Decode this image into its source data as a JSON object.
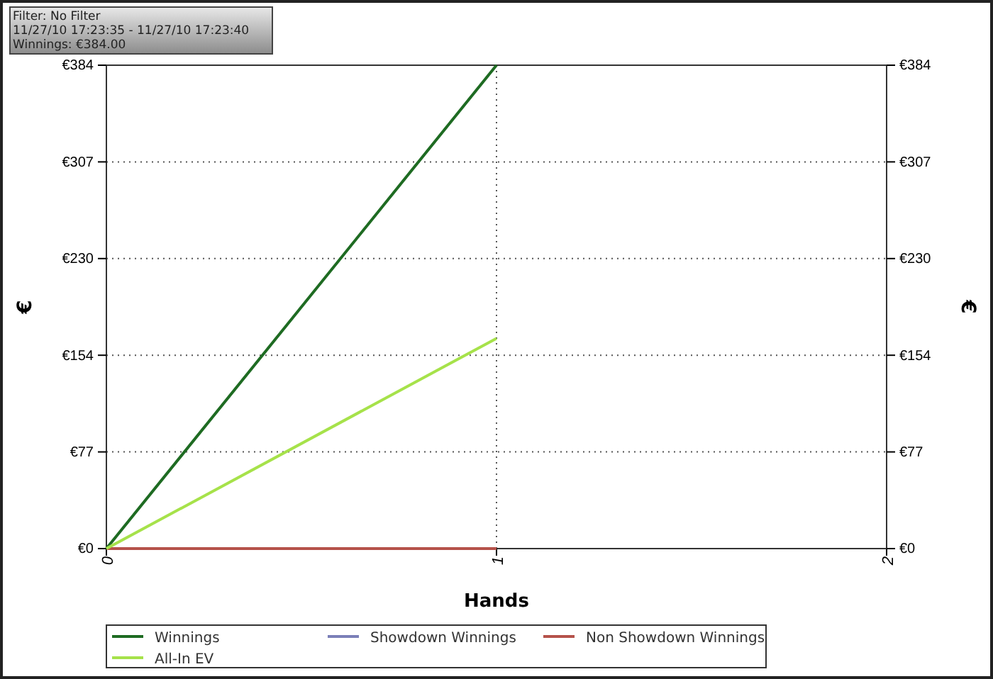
{
  "chart_data": {
    "type": "line",
    "xlabel": "Hands",
    "ylabel": "€",
    "y2label": "€",
    "x": [
      0,
      1
    ],
    "series": [
      {
        "name": "Winnings",
        "color": "#1e6b22",
        "values": [
          0,
          384
        ]
      },
      {
        "name": "Showdown Winnings",
        "color": "#7b7fb8",
        "values": [
          null,
          null
        ]
      },
      {
        "name": "Non Showdown Winnings",
        "color": "#b5524a",
        "values": [
          0,
          0
        ]
      },
      {
        "name": "All-In EV",
        "color": "#a6e24a",
        "values": [
          0,
          167
        ]
      }
    ],
    "xlim": [
      0,
      2
    ],
    "xticks": [
      0,
      1,
      2
    ],
    "ylim": [
      0,
      384
    ],
    "yticks": [
      {
        "value": 0,
        "label": "€0"
      },
      {
        "value": 76.8,
        "label": "€77"
      },
      {
        "value": 153.6,
        "label": "€154"
      },
      {
        "value": 230.4,
        "label": "€230"
      },
      {
        "value": 307.2,
        "label": "€307"
      },
      {
        "value": 384,
        "label": "€384"
      }
    ],
    "y2lim": [
      0,
      384
    ],
    "y2ticks": [
      {
        "value": 0,
        "label": "€0"
      },
      {
        "value": 76.8,
        "label": "€77"
      },
      {
        "value": 153.6,
        "label": "€154"
      },
      {
        "value": 230.4,
        "label": "€230"
      },
      {
        "value": 307.2,
        "label": "€307"
      },
      {
        "value": 384,
        "label": "€384"
      }
    ],
    "grid": true,
    "legend": "bottom",
    "marker": "none",
    "line_style": "solid",
    "annotations": [
      "Filter: No Filter",
      "11/27/10 17:23:35 - 11/27/10 17:23:40",
      "Winnings: €384.00"
    ]
  }
}
